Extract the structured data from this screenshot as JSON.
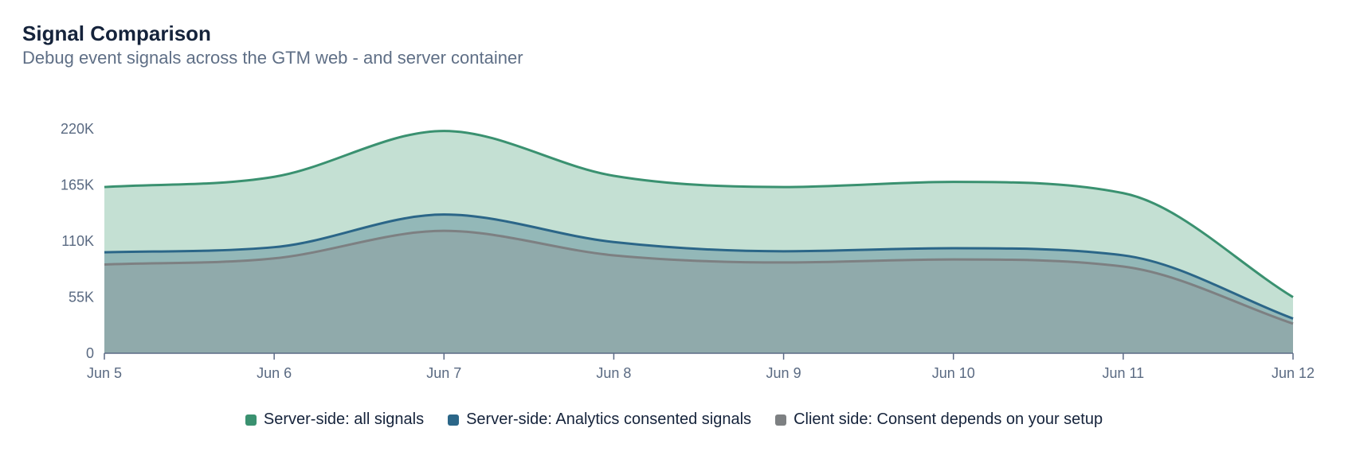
{
  "header": {
    "title": "Signal Comparison",
    "subtitle": "Debug event signals across the GTM web - and server container"
  },
  "chart_data": {
    "type": "area",
    "x": [
      "Jun 5",
      "Jun 6",
      "Jun 7",
      "Jun 8",
      "Jun 9",
      "Jun 10",
      "Jun 11",
      "Jun 12"
    ],
    "ylim": [
      0,
      220000
    ],
    "y_ticks": [
      0,
      55000,
      110000,
      165000,
      220000
    ],
    "y_tick_labels": [
      "0",
      "55K",
      "110K",
      "165K",
      "220K"
    ],
    "grid": false,
    "legend_position": "bottom",
    "series": [
      {
        "name": "Server-side: all signals",
        "color": "#3a9170",
        "fill": "#c4e0d3",
        "values": [
          163000,
          173000,
          218000,
          174000,
          163000,
          168000,
          157000,
          55000
        ]
      },
      {
        "name": "Server-side: Analytics consented signals",
        "color": "#2b6688",
        "fill": "#93b8b8",
        "values": [
          99000,
          104000,
          136000,
          109000,
          100000,
          103000,
          96000,
          34000
        ]
      },
      {
        "name": "Client side: Consent depends on your setup",
        "color": "#7d8082",
        "fill": "#90aaab",
        "values": [
          87000,
          93000,
          120000,
          96000,
          89000,
          92000,
          85000,
          29000
        ]
      }
    ]
  }
}
